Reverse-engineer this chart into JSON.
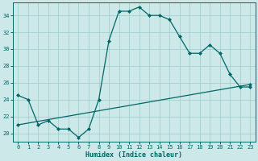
{
  "xlabel": "Humidex (Indice chaleur)",
  "bg_color": "#cce8e8",
  "line_color": "#006666",
  "grid_color": "#99cccc",
  "xlim": [
    -0.5,
    23.5
  ],
  "ylim": [
    19.0,
    35.5
  ],
  "yticks": [
    20,
    22,
    24,
    26,
    28,
    30,
    32,
    34
  ],
  "xticks": [
    0,
    1,
    2,
    3,
    4,
    5,
    6,
    7,
    8,
    9,
    10,
    11,
    12,
    13,
    14,
    15,
    16,
    17,
    18,
    19,
    20,
    21,
    22,
    23
  ],
  "series1_x": [
    0,
    1,
    2,
    3,
    4,
    5,
    6,
    7,
    8,
    9,
    10,
    11,
    12,
    13,
    14,
    15,
    16,
    17,
    18,
    19,
    20,
    21,
    22,
    23
  ],
  "series1_y": [
    24.5,
    24.0,
    21.0,
    21.5,
    20.5,
    20.5,
    19.5,
    20.5,
    24.0,
    31.0,
    34.5,
    34.5,
    35.0,
    34.0,
    34.0,
    33.5,
    31.5,
    29.5,
    29.5,
    30.5,
    29.5,
    27.0,
    25.5,
    25.5
  ],
  "series2_x": [
    0,
    23
  ],
  "series2_y": [
    21.0,
    25.8
  ],
  "marker": "D",
  "marker_size": 2.0,
  "line_width": 0.9,
  "tick_fontsize": 5.0,
  "xlabel_fontsize": 6.0,
  "figsize": [
    3.2,
    2.0
  ],
  "dpi": 100
}
